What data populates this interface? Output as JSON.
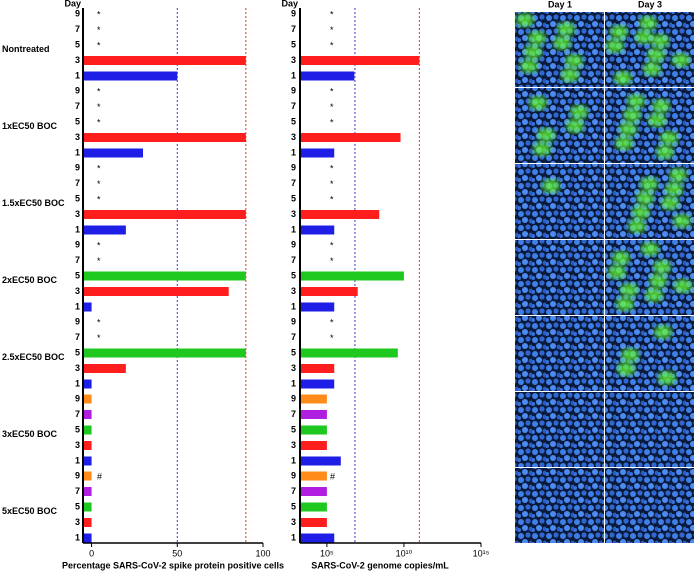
{
  "chart_data": [
    {
      "type": "bar",
      "orientation": "horizontal",
      "scale": "linear",
      "day_heading": "Day",
      "x_label": "Percentage SARS-CoV-2 spike protein positive cells",
      "groups": [
        "Nontreated",
        "1xEC50 BOC",
        "1.5xEC50 BOC",
        "2xEC50 BOC",
        "2.5xEC50 BOC",
        "3xEC50 BOC",
        "5xEC50 BOC"
      ],
      "days": [
        "9",
        "7",
        "5",
        "3",
        "1"
      ],
      "colors": [
        "#ff8c1a",
        "#b01ee0",
        "#1ec81e",
        "#ff1e1e",
        "#1e1ee6"
      ],
      "values": [
        [
          null,
          null,
          null,
          90,
          50
        ],
        [
          null,
          null,
          null,
          90,
          30
        ],
        [
          null,
          null,
          null,
          90,
          20
        ],
        [
          null,
          null,
          90,
          80,
          0
        ],
        [
          null,
          null,
          90,
          20,
          0
        ],
        [
          0,
          0,
          0,
          0,
          0
        ],
        [
          0,
          0,
          0,
          0,
          0
        ]
      ],
      "notes": [
        [
          "*",
          "*",
          "*",
          null,
          null
        ],
        [
          "*",
          "*",
          "*",
          null,
          null
        ],
        [
          "*",
          "*",
          "*",
          null,
          null
        ],
        [
          "*",
          "*",
          null,
          null,
          null
        ],
        [
          "*",
          "*",
          null,
          null,
          null
        ],
        [
          null,
          null,
          null,
          null,
          null
        ],
        [
          "#",
          null,
          null,
          null,
          null
        ]
      ],
      "xlim": [
        -5,
        100
      ],
      "xticks": [
        0,
        50,
        100
      ],
      "reference_lines": [
        {
          "value": 50,
          "color": "#3a3ad0"
        },
        {
          "value": 90,
          "color": "#e03030"
        }
      ]
    },
    {
      "type": "bar",
      "orientation": "horizontal",
      "scale": "log",
      "day_heading": "Day",
      "x_label": "SARS-CoV-2 genome copies/mL",
      "days": [
        "9",
        "7",
        "5",
        "3",
        "1"
      ],
      "colors": [
        "#ff8c1a",
        "#b01ee0",
        "#1ec81e",
        "#ff1e1e",
        "#1e1ee6"
      ],
      "values": [
        [
          null,
          null,
          null,
          100000000000,
          6000000
        ],
        [
          null,
          null,
          null,
          6000000000,
          300000
        ],
        [
          null,
          null,
          null,
          250000000,
          300000
        ],
        [
          null,
          null,
          10000000000,
          10000000,
          300000
        ],
        [
          null,
          null,
          4000000000,
          300000,
          300000
        ],
        [
          100000,
          100000,
          100000,
          100000,
          800000
        ],
        [
          100000,
          100000,
          100000,
          100000,
          300000
        ]
      ],
      "notes": [
        [
          "*",
          "*",
          "*",
          null,
          null
        ],
        [
          "*",
          "*",
          "*",
          null,
          null
        ],
        [
          "*",
          "*",
          "*",
          null,
          null
        ],
        [
          "*",
          "*",
          null,
          null,
          null
        ],
        [
          "*",
          "*",
          null,
          null,
          null
        ],
        [
          null,
          null,
          null,
          null,
          null
        ],
        [
          "#",
          null,
          null,
          null,
          null
        ]
      ],
      "xlim": [
        1800,
        1000000000000000
      ],
      "xticks": [
        {
          "value": 100000,
          "label": "10⁵"
        },
        {
          "value": 10000000000,
          "label": "10¹⁰"
        },
        {
          "value": 1000000000000000,
          "label": "10¹⁵"
        }
      ],
      "reference_lines": [
        {
          "value": 6600000,
          "color": "#3a3ad0"
        },
        {
          "value": 100000000000,
          "color": "#e03030"
        }
      ]
    }
  ],
  "micrographs": {
    "columns": [
      "Day 1",
      "Day 3"
    ]
  }
}
